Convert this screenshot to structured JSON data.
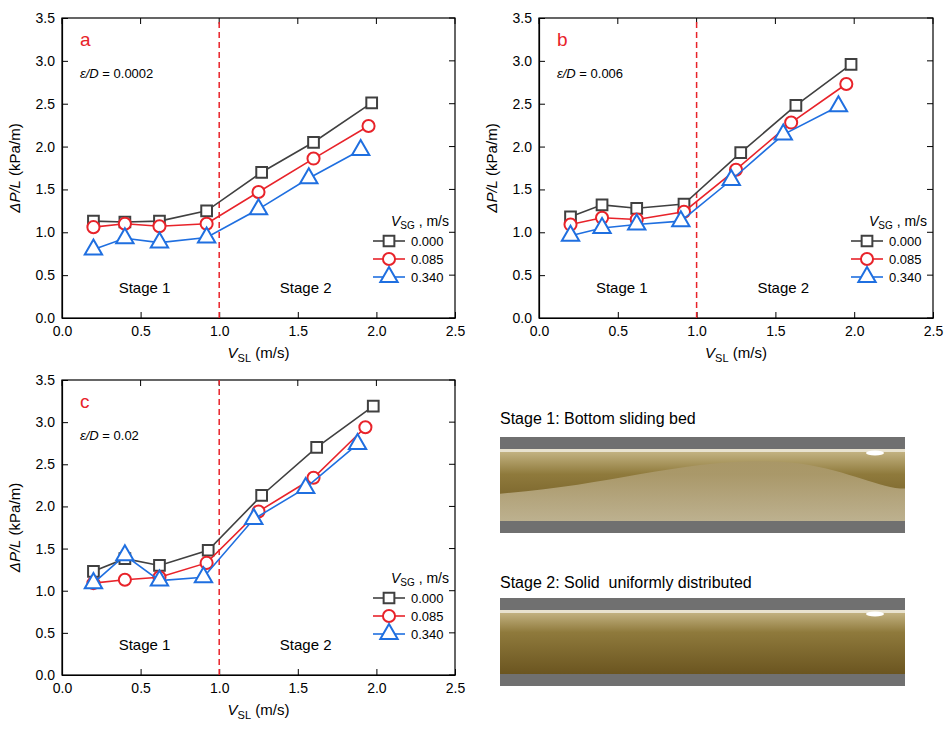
{
  "chart_data": [
    {
      "type": "line",
      "label": "a",
      "annotation": [
        "ε/D",
        " = 0.0002"
      ],
      "xlabel": [
        "V",
        "SL",
        " (m/s)"
      ],
      "ylabel": [
        "ΔP/L",
        " (kPa/m)"
      ],
      "xlim": [
        0,
        2.5
      ],
      "xticks": [
        {
          "value": 0,
          "label": "0.0"
        },
        {
          "value": 0.5,
          "label": "0.5"
        },
        {
          "value": 1,
          "label": "1.0"
        },
        {
          "value": 1.5,
          "label": "1.5"
        },
        {
          "value": 2,
          "label": "2.0"
        },
        {
          "value": 2.5,
          "label": "2.5"
        }
      ],
      "ylim": [
        0,
        3.5
      ],
      "yticks": [
        {
          "value": 0,
          "label": "0.0"
        },
        {
          "value": 0.5,
          "label": "0.5"
        },
        {
          "value": 1,
          "label": "1.0"
        },
        {
          "value": 1.5,
          "label": "1.5"
        },
        {
          "value": 2,
          "label": "2.0"
        },
        {
          "value": 2.5,
          "label": "2.5"
        },
        {
          "value": 3,
          "label": "3.0"
        },
        {
          "value": 3.5,
          "label": "3.5"
        }
      ],
      "vline": 1,
      "stages": [
        "Stage 1",
        "Stage 2"
      ],
      "legend": "lower right",
      "legend_title": [
        "V",
        "SG",
        " , m/s"
      ],
      "series": [
        {
          "name": "0.000",
          "color": "#404040",
          "marker": "square",
          "x": [
            0.2,
            0.4,
            0.62,
            0.92,
            1.27,
            1.6,
            1.97
          ],
          "values": [
            1.13,
            1.12,
            1.13,
            1.25,
            1.7,
            2.05,
            2.51
          ]
        },
        {
          "name": "0.085",
          "color": "#e8232a",
          "marker": "circle",
          "x": [
            0.2,
            0.4,
            0.62,
            0.92,
            1.25,
            1.6,
            1.95
          ],
          "values": [
            1.06,
            1.1,
            1.07,
            1.1,
            1.47,
            1.86,
            2.24
          ]
        },
        {
          "name": "0.340",
          "color": "#1f6fe0",
          "marker": "triangle",
          "x": [
            0.2,
            0.4,
            0.62,
            0.92,
            1.25,
            1.57,
            1.9
          ],
          "values": [
            0.8,
            0.93,
            0.88,
            0.94,
            1.27,
            1.63,
            1.96
          ]
        }
      ]
    },
    {
      "type": "line",
      "label": "b",
      "annotation": [
        "ε/D",
        " = 0.006"
      ],
      "xlabel": [
        "V",
        "SL",
        " (m/s)"
      ],
      "ylabel": [
        "ΔP/L",
        " (kPa/m)"
      ],
      "xlim": [
        0,
        2.5
      ],
      "xticks": [
        {
          "value": 0,
          "label": "0.0"
        },
        {
          "value": 0.5,
          "label": "0.5"
        },
        {
          "value": 1,
          "label": "1.0"
        },
        {
          "value": 1.5,
          "label": "1.5"
        },
        {
          "value": 2,
          "label": "2.0"
        },
        {
          "value": 2.5,
          "label": "2.5"
        }
      ],
      "ylim": [
        0,
        3.5
      ],
      "yticks": [
        {
          "value": 0,
          "label": "0.0"
        },
        {
          "value": 0.5,
          "label": "0.5"
        },
        {
          "value": 1,
          "label": "1.0"
        },
        {
          "value": 1.5,
          "label": "1.5"
        },
        {
          "value": 2,
          "label": "2.0"
        },
        {
          "value": 2.5,
          "label": "2.5"
        },
        {
          "value": 3,
          "label": "3.0"
        },
        {
          "value": 3.5,
          "label": "3.5"
        }
      ],
      "vline": 1,
      "stages": [
        "Stage 1",
        "Stage 2"
      ],
      "legend": "lower right",
      "legend_title": [
        "V",
        "SG",
        " , m/s"
      ],
      "series": [
        {
          "name": "0.000",
          "color": "#404040",
          "marker": "square",
          "x": [
            0.2,
            0.4,
            0.62,
            0.92,
            1.28,
            1.63,
            1.98
          ],
          "values": [
            1.18,
            1.32,
            1.28,
            1.33,
            1.93,
            2.48,
            2.96
          ]
        },
        {
          "name": "0.085",
          "color": "#e8232a",
          "marker": "circle",
          "x": [
            0.2,
            0.4,
            0.62,
            0.92,
            1.25,
            1.6,
            1.95
          ],
          "values": [
            1.09,
            1.17,
            1.15,
            1.24,
            1.73,
            2.28,
            2.73
          ]
        },
        {
          "name": "0.340",
          "color": "#1f6fe0",
          "marker": "triangle",
          "x": [
            0.2,
            0.4,
            0.62,
            0.9,
            1.22,
            1.55,
            1.9
          ],
          "values": [
            0.96,
            1.05,
            1.09,
            1.13,
            1.61,
            2.14,
            2.47
          ]
        }
      ]
    },
    {
      "type": "line",
      "label": "c",
      "annotation": [
        "ε/D",
        " = 0.02"
      ],
      "xlabel": [
        "V",
        "SL",
        " (m/s)"
      ],
      "ylabel": [
        "ΔP/L",
        " (kPa/m)"
      ],
      "xlim": [
        0,
        2.5
      ],
      "xticks": [
        {
          "value": 0,
          "label": "0.0"
        },
        {
          "value": 0.5,
          "label": "0.5"
        },
        {
          "value": 1,
          "label": "1.0"
        },
        {
          "value": 1.5,
          "label": "1.5"
        },
        {
          "value": 2,
          "label": "2.0"
        },
        {
          "value": 2.5,
          "label": "2.5"
        }
      ],
      "ylim": [
        0,
        3.5
      ],
      "yticks": [
        {
          "value": 0,
          "label": "0.0"
        },
        {
          "value": 0.5,
          "label": "0.5"
        },
        {
          "value": 1,
          "label": "1.0"
        },
        {
          "value": 1.5,
          "label": "1.5"
        },
        {
          "value": 2,
          "label": "2.0"
        },
        {
          "value": 2.5,
          "label": "2.5"
        },
        {
          "value": 3,
          "label": "3.0"
        },
        {
          "value": 3.5,
          "label": "3.5"
        }
      ],
      "vline": 1,
      "stages": [
        "Stage 1",
        "Stage 2"
      ],
      "legend": "lower right",
      "legend_title": [
        "V",
        "SG",
        " , m/s"
      ],
      "series": [
        {
          "name": "0.000",
          "color": "#404040",
          "marker": "square",
          "x": [
            0.2,
            0.4,
            0.62,
            0.93,
            1.27,
            1.62,
            1.98
          ],
          "values": [
            1.23,
            1.38,
            1.3,
            1.48,
            2.13,
            2.7,
            3.19
          ]
        },
        {
          "name": "0.085",
          "color": "#e8232a",
          "marker": "circle",
          "x": [
            0.2,
            0.4,
            0.62,
            0.92,
            1.25,
            1.6,
            1.93
          ],
          "values": [
            1.09,
            1.13,
            1.16,
            1.33,
            1.94,
            2.34,
            2.94
          ]
        },
        {
          "name": "0.340",
          "color": "#1f6fe0",
          "marker": "triangle",
          "x": [
            0.2,
            0.4,
            0.62,
            0.9,
            1.22,
            1.55,
            1.88
          ],
          "values": [
            1.09,
            1.42,
            1.12,
            1.16,
            1.85,
            2.22,
            2.74
          ]
        }
      ]
    }
  ],
  "photos": [
    {
      "caption": "Stage 1: Bottom sliding bed"
    },
    {
      "caption": "Stage 2: Solid  uniformly distributed"
    }
  ]
}
